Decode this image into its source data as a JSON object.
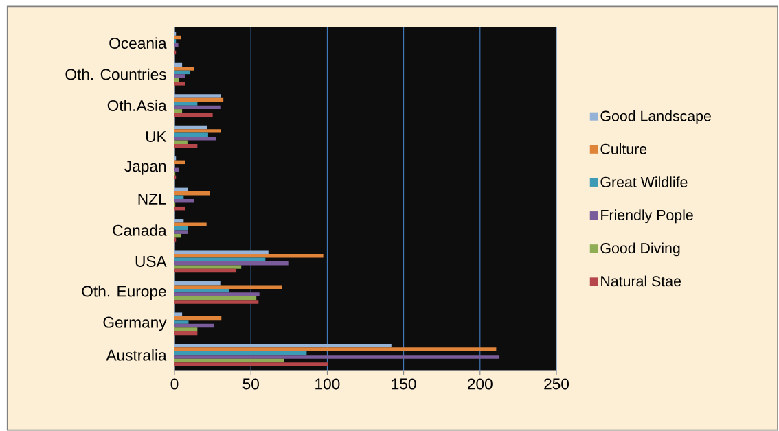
{
  "chart_data": {
    "type": "bar",
    "orientation": "horizontal",
    "categories": [
      "Oceania",
      "Oth. Countries",
      "Oth.Asia",
      "UK",
      "Japan",
      "NZL",
      "Canada",
      "USA",
      "Oth. Europe",
      "Germany",
      "Australia"
    ],
    "series": [
      {
        "name": "Good Landscape",
        "color": "#95b3d7",
        "values": [
          1,
          5,
          30.5,
          21.5,
          1,
          9,
          6,
          61.5,
          30,
          5,
          142
        ]
      },
      {
        "name": "Culture",
        "color": "#e0843a",
        "values": [
          4.5,
          13,
          32,
          30.5,
          7,
          23,
          21,
          97.4,
          70.5,
          30.7,
          210.6
        ]
      },
      {
        "name": "Great Wildlife",
        "color": "#3e9bb5",
        "values": [
          1,
          10,
          15,
          22,
          0,
          6,
          9,
          59.5,
          36,
          9.2,
          86.5
        ]
      },
      {
        "name": "Friendly Pople",
        "color": "#7a5c9a",
        "values": [
          2.5,
          7,
          30,
          27,
          3,
          13,
          9,
          74.5,
          55.6,
          26,
          212.7
        ]
      },
      {
        "name": "Good Diving",
        "color": "#8fad55",
        "values": [
          0,
          3,
          5,
          8.5,
          0.5,
          0.5,
          4.5,
          43.7,
          53.6,
          15,
          71.8
        ]
      },
      {
        "name": "Natural Stae",
        "color": "#b5474a",
        "values": [
          1,
          7,
          25,
          15,
          1,
          7,
          1,
          40.5,
          55,
          15,
          100.3
        ]
      }
    ],
    "xlim": [
      0,
      250
    ],
    "xticks": [
      0,
      50,
      100,
      150,
      200,
      250
    ],
    "grid": "x",
    "legend": "right"
  }
}
